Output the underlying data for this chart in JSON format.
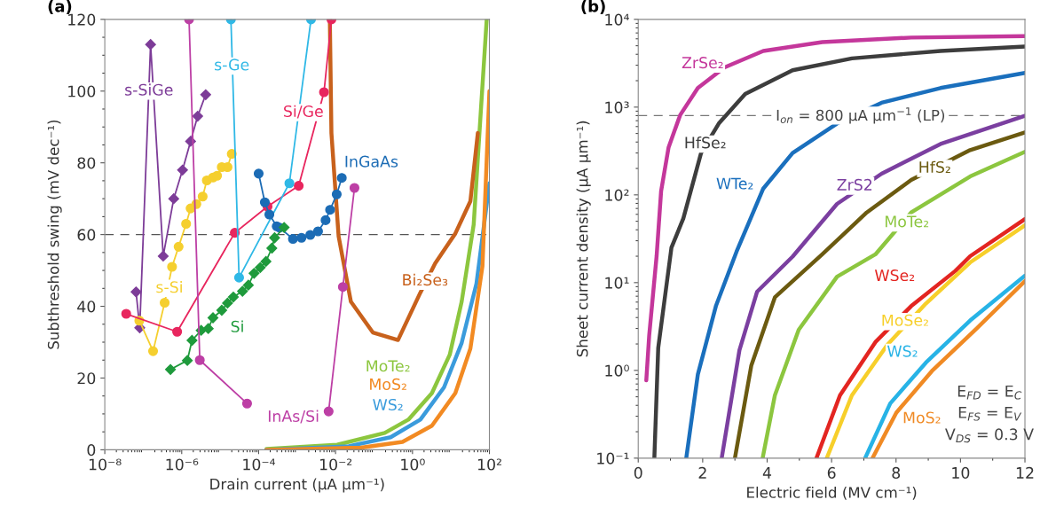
{
  "chart_data": [
    {
      "type": "line",
      "title": "(a)",
      "xlabel": "Drain current (μA μm⁻¹)",
      "ylabel": "Subthreshold swing (mV dec⁻¹)",
      "log": "x",
      "xlim": [
        1e-08,
        100
      ],
      "ylim": [
        0,
        120
      ],
      "xticks": [
        {
          "value": 1e-08,
          "label": "10⁻⁸"
        },
        {
          "value": 1e-06,
          "label": "10⁻⁶"
        },
        {
          "value": 0.0001,
          "label": "10⁻⁴"
        },
        {
          "value": 0.01,
          "label": "10⁻²"
        },
        {
          "value": 1,
          "label": "10⁰"
        },
        {
          "value": 100,
          "label": "10²"
        }
      ],
      "yticks": [
        0,
        20,
        40,
        60,
        80,
        100,
        120
      ],
      "grid": false,
      "legend": false,
      "ref_lines": [
        {
          "axis": "y",
          "value": 60,
          "color": "#555555",
          "line_style": "dashed"
        }
      ],
      "series": [
        {
          "name": "MoTe₂",
          "color": "#8cc63e",
          "marker": "none",
          "x": [
            0.00016,
            0.011,
            0.19,
            0.78,
            3.2,
            9.3,
            19,
            39,
            55,
            85
          ],
          "values": [
            0.2,
            1.4,
            4.7,
            8.4,
            15.8,
            26.5,
            41.3,
            62.8,
            88.3,
            120
          ]
        },
        {
          "name": "WS₂",
          "color": "#3a9bdc",
          "marker": "none",
          "x": [
            0.00016,
            0.022,
            0.27,
            1.6,
            6.6,
            19,
            46,
            100
          ],
          "values": [
            0,
            1,
            3.5,
            8.4,
            17.4,
            29.8,
            46.3,
            74.3
          ]
        },
        {
          "name": "MoS₂",
          "color": "#f28a22",
          "marker": "none",
          "x": [
            0.00016,
            0.046,
            0.55,
            3.2,
            13,
            32,
            66,
            100
          ],
          "values": [
            0,
            0.6,
            2.2,
            6.7,
            15.8,
            28.2,
            51.2,
            100
          ]
        },
        {
          "name": "Bi₂Se₃",
          "color": "#c8611c",
          "marker": "none",
          "x": [
            0.0071,
            0.0078,
            0.012,
            0.025,
            0.093,
            0.42,
            1.6,
            3.9,
            13,
            32,
            50
          ],
          "values": [
            120,
            88.3,
            59.5,
            41.3,
            32.7,
            30.6,
            43.8,
            52,
            60.3,
            69.3,
            88.3
          ]
        },
        {
          "name": "s-SiGe",
          "color": "#7d3c98",
          "marker": "diamond",
          "x": [
            6.5e-08,
            8.1e-08,
            1.55e-07,
            3.3e-07,
            6.2e-07,
            1.05e-06,
            1.7e-06,
            2.6e-06,
            4.2e-06
          ],
          "values": [
            44,
            34,
            113,
            54,
            70,
            78,
            86,
            93,
            99
          ]
        },
        {
          "name": "s-Si",
          "color": "#f5cf2f",
          "marker": "circle",
          "x": [
            7.9e-08,
            1.8e-07,
            3.6e-07,
            5.6e-07,
            8.3e-07,
            1.3e-06,
            1.7e-06,
            2.4e-06,
            3.5e-06,
            4.5e-06,
            6.5e-06,
            8.3e-06,
            1.1e-05,
            1.55e-05,
            2e-05
          ],
          "values": [
            36,
            27.5,
            41,
            51,
            56.6,
            63,
            67.3,
            68.5,
            70.6,
            75.1,
            75.9,
            76.4,
            78.8,
            78.8,
            82.5
          ]
        },
        {
          "name": "Si/Ge",
          "color": "#e8265e",
          "marker": "circle",
          "x": [
            3.6e-08,
            7.6e-07,
            2.4e-05,
            0.00017,
            0.0011,
            0.005,
            0.0078
          ],
          "values": [
            37.9,
            32.9,
            60.5,
            67.8,
            73.6,
            99.7,
            120
          ]
        },
        {
          "name": "s-Ge",
          "color": "#2fb8e6",
          "marker": "circle",
          "x": [
            1.9e-05,
            3.1e-05,
            0.00063,
            0.0023
          ],
          "values": [
            120,
            48,
            74.3,
            120
          ]
        },
        {
          "name": "InGaAs",
          "color": "#1c6cb5",
          "marker": "circle",
          "x": [
            0.0001,
            0.000145,
            0.00019,
            0.000295,
            0.00035,
            0.00078,
            0.0013,
            0.0022,
            0.0035,
            0.0055,
            0.0072,
            0.0107,
            0.0145
          ],
          "values": [
            77,
            69,
            65.6,
            62.3,
            61.9,
            58.8,
            59.1,
            59.9,
            60.9,
            64,
            66.9,
            71.2,
            75.8
          ]
        },
        {
          "name": "Si",
          "color": "#1f9a3c",
          "marker": "diamond",
          "x": [
            5.1e-07,
            1.4e-06,
            1.85e-06,
            3.2e-06,
            4.9e-06,
            6.5e-06,
            1.1e-05,
            1.55e-05,
            2.2e-05,
            3.8e-05,
            5.4e-05,
            7.6e-05,
            0.00011,
            0.000155,
            0.00022,
            0.00026,
            0.00046
          ],
          "values": [
            22.4,
            24.9,
            30.5,
            33.3,
            33.8,
            36.8,
            38.9,
            40.9,
            42.6,
            44.2,
            45.9,
            49.2,
            50.8,
            52.5,
            56.2,
            59.1,
            62
          ]
        },
        {
          "name": "InAs/Si",
          "color": "#bd3fa5",
          "marker": "circle",
          "x": [
            1.55e-06,
            2.95e-06,
            5e-05
          ],
          "values": [
            120,
            25,
            12.9
          ]
        },
        {
          "color": "#bd3fa5",
          "marker": "circle",
          "x": [
            0.0066,
            0.0155,
            0.031
          ],
          "values": [
            10.7,
            45.4,
            73
          ]
        }
      ]
    },
    {
      "type": "line",
      "title": "(b)",
      "xlabel": "Electric field (MV cm⁻¹)",
      "ylabel": "Sheet current density (μA μm⁻¹)",
      "log": "y",
      "xlim": [
        0,
        12
      ],
      "ylim": [
        0.1,
        10000
      ],
      "xticks": [
        0,
        2,
        4,
        6,
        8,
        10,
        12
      ],
      "yticks": [
        {
          "value": 0.1,
          "label": "10⁻¹"
        },
        {
          "value": 1,
          "label": "10⁰"
        },
        {
          "value": 10,
          "label": "10¹"
        },
        {
          "value": 100,
          "label": "10²"
        },
        {
          "value": 1000,
          "label": "10³"
        },
        {
          "value": 10000,
          "label": "10⁴"
        }
      ],
      "grid": false,
      "legend": false,
      "ref_lines": [
        {
          "axis": "y",
          "value": 800,
          "label": "I$_{on}$ = 800 μA μm$^{−1}$ (LP)",
          "color": "#777777",
          "line_style": "dashed"
        }
      ],
      "annotations": [
        "E$_{FD}$ = E$_{C}$",
        "E$_{FS}$ = E$_{V}$",
        "V$_{DS}$ = 0.3 V"
      ],
      "series": [
        {
          "name": "ZrSe₂",
          "color": "#c4379b",
          "marker": "none",
          "x": [
            0.25,
            0.34,
            0.57,
            0.71,
            0.94,
            1.3,
            1.85,
            2.68,
            3.88,
            5.71,
            8.47,
            12
          ],
          "values": [
            0.77,
            2.5,
            20,
            110,
            345,
            810,
            1650,
            2840,
            4360,
            5500,
            6200,
            6450
          ]
        },
        {
          "name": "HfSe₂",
          "color": "#3d3d3d",
          "marker": "none",
          "x": [
            0.5,
            0.62,
            1.03,
            1.4,
            1.95,
            2.5,
            3.32,
            4.79,
            6.63,
            9.38,
            12
          ],
          "values": [
            0.1,
            1.8,
            25,
            54,
            300,
            650,
            1410,
            2630,
            3590,
            4370,
            4900
          ]
        },
        {
          "name": "WTe₂",
          "color": "#1a6fbd",
          "marker": "none",
          "x": [
            1.49,
            1.85,
            2.41,
            3.05,
            3.88,
            4.79,
            6.17,
            7.55,
            9.38,
            12
          ],
          "values": [
            0.1,
            0.9,
            5.4,
            22.5,
            118,
            300,
            650,
            1120,
            1650,
            2450
          ]
        },
        {
          "name": "ZrS2",
          "color": "#7b3fa0",
          "marker": "none",
          "x": [
            2.59,
            3.14,
            3.69,
            4.79,
            6.17,
            7.55,
            9.38,
            12
          ],
          "values": [
            0.1,
            1.7,
            7.9,
            19.8,
            79,
            174,
            380,
            795
          ]
        },
        {
          "name": "HfS₂",
          "color": "#6b5a10",
          "marker": "none",
          "x": [
            3.0,
            3.51,
            4.24,
            5.71,
            7.09,
            8.47,
            10.3,
            12
          ],
          "values": [
            0.1,
            1.14,
            6.8,
            21,
            63,
            148,
            324,
            515
          ]
        },
        {
          "name": "MoTe₂",
          "color": "#8cc63f",
          "marker": "none",
          "x": [
            3.86,
            4.24,
            4.98,
            6.17,
            7.36,
            8.47,
            10.3,
            12
          ],
          "values": [
            0.1,
            0.52,
            2.9,
            11.7,
            21,
            63,
            162,
            310
          ]
        },
        {
          "name": "WSe₂",
          "color": "#e32521",
          "marker": "none",
          "x": [
            5.53,
            6.26,
            7.36,
            8.47,
            9.84,
            10.3,
            12
          ],
          "values": [
            0.1,
            0.52,
            2.1,
            5.4,
            13.6,
            20,
            53
          ]
        },
        {
          "name": "MoSe₂",
          "color": "#f7cf2a",
          "marker": "none",
          "x": [
            5.85,
            6.63,
            7.73,
            8.93,
            10.3,
            12
          ],
          "values": [
            0.1,
            0.52,
            1.96,
            5.8,
            17,
            45
          ]
        },
        {
          "name": "WS₂",
          "color": "#27b3e6",
          "marker": "none",
          "x": [
            7.04,
            7.82,
            8.93,
            10.3,
            12
          ],
          "values": [
            0.1,
            0.42,
            1.23,
            3.7,
            12
          ]
        },
        {
          "name": "MoS₂",
          "color": "#f08a24",
          "marker": "none",
          "x": [
            7.27,
            8.01,
            9.11,
            10.5,
            12
          ],
          "values": [
            0.1,
            0.33,
            0.98,
            3.0,
            10.4
          ]
        }
      ]
    }
  ]
}
